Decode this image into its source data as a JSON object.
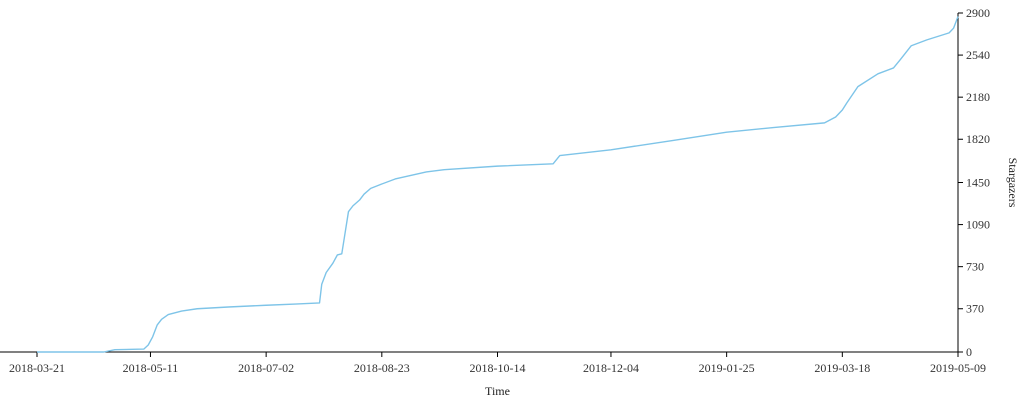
{
  "chart_data": {
    "type": "line",
    "title": "",
    "xlabel": "Time",
    "ylabel": "Stargazers",
    "x_ticks": [
      "2018-03-21",
      "2018-05-11",
      "2018-07-02",
      "2018-08-23",
      "2018-10-14",
      "2018-12-04",
      "2019-01-25",
      "2019-03-18",
      "2019-05-09"
    ],
    "y_ticks": [
      "0",
      "370",
      "730",
      "1090",
      "1450",
      "1820",
      "2180",
      "2540",
      "2900"
    ],
    "xlim": [
      "2018-03-21",
      "2019-05-09"
    ],
    "ylim": [
      0,
      2900
    ],
    "grid": false,
    "color": "#7ec4e8",
    "series": [
      {
        "x": [
          "2018-03-21",
          "2018-04-20",
          "2018-04-25",
          "2018-05-08",
          "2018-05-10",
          "2018-05-12",
          "2018-05-14",
          "2018-05-16",
          "2018-05-19",
          "2018-05-25",
          "2018-06-01",
          "2018-06-15",
          "2018-07-02",
          "2018-07-15",
          "2018-07-26",
          "2018-07-27",
          "2018-07-29",
          "2018-08-01",
          "2018-08-03",
          "2018-08-05",
          "2018-08-08",
          "2018-08-10",
          "2018-08-13",
          "2018-08-15",
          "2018-08-18",
          "2018-08-22",
          "2018-08-29",
          "2018-09-05",
          "2018-09-12",
          "2018-09-20",
          "2018-10-14",
          "2018-11-08",
          "2018-11-11",
          "2018-12-04",
          "2019-01-01",
          "2019-01-25",
          "2019-02-15",
          "2019-03-10",
          "2019-03-15",
          "2019-03-18",
          "2019-03-20",
          "2019-03-25",
          "2019-04-03",
          "2019-04-10",
          "2019-04-13",
          "2019-04-18",
          "2019-04-25",
          "2019-05-05",
          "2019-05-07",
          "2019-05-09"
        ],
        "y": [
          0,
          0,
          20,
          25,
          60,
          130,
          230,
          280,
          320,
          350,
          370,
          385,
          400,
          410,
          420,
          580,
          680,
          760,
          830,
          840,
          1200,
          1250,
          1300,
          1350,
          1400,
          1430,
          1480,
          1510,
          1540,
          1560,
          1590,
          1610,
          1680,
          1730,
          1810,
          1880,
          1920,
          1960,
          2010,
          2070,
          2130,
          2270,
          2380,
          2430,
          2500,
          2620,
          2670,
          2730,
          2770,
          2870
        ]
      }
    ]
  }
}
